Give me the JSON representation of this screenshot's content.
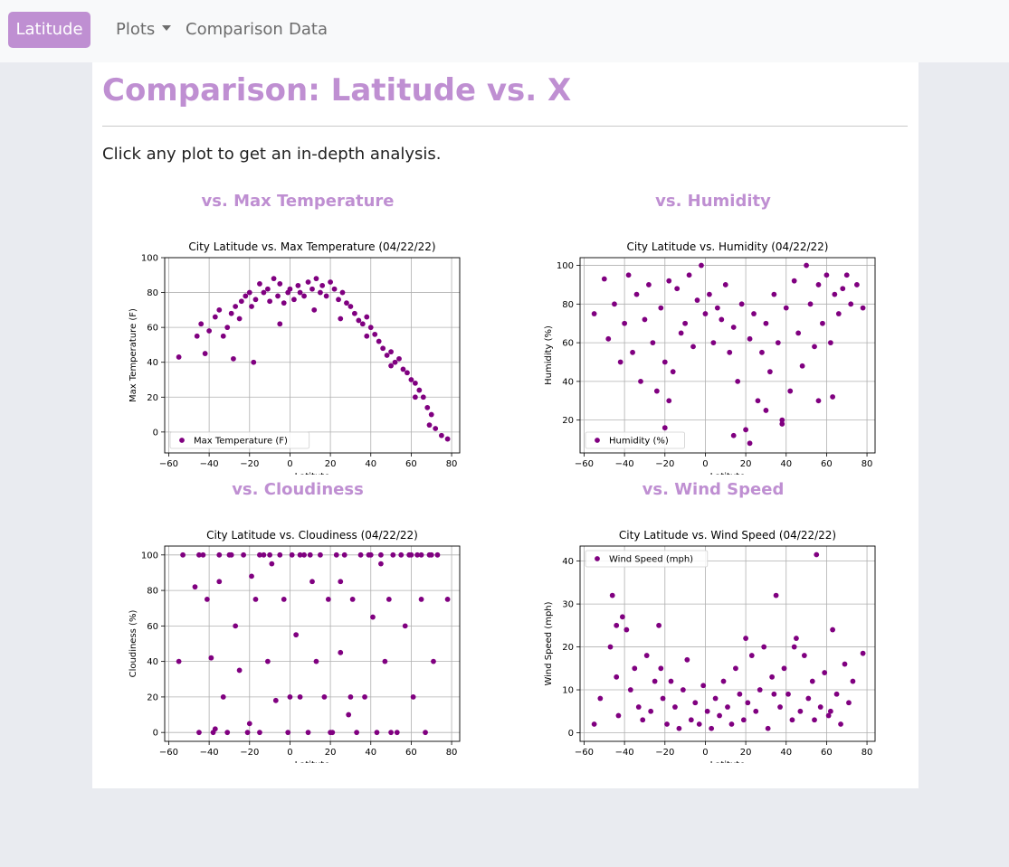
{
  "nav": {
    "brand": "Latitude",
    "items": [
      {
        "label": "Plots",
        "dropdown": true
      },
      {
        "label": "Comparison",
        "dropdown": false
      },
      {
        "label": "Data",
        "dropdown": false
      }
    ]
  },
  "page": {
    "title": "Comparison: Latitude vs. X",
    "intro": "Click any plot to get an in-depth analysis."
  },
  "colors": {
    "accent": "#bf8fd2",
    "marker": "#800080",
    "background": "#e9ebf0"
  },
  "chart_data": [
    {
      "heading": "vs. Max Temperature",
      "type": "scatter",
      "title": "City Latitude vs. Max Temperature (04/22/22)",
      "xlabel": "Latitute",
      "ylabel": "Max Temperature (F)",
      "legend": "Max Temperature (F)",
      "legend_position": "lower-left",
      "grid": true,
      "xlim": [
        -62,
        84
      ],
      "ylim": [
        -12,
        100
      ],
      "xticks": [
        -60,
        -40,
        -20,
        0,
        20,
        40,
        60,
        80
      ],
      "yticks": [
        0,
        20,
        40,
        60,
        80,
        100
      ],
      "x": [
        -55,
        -46,
        -44,
        -40,
        -37,
        -35,
        -33,
        -31,
        -29,
        -27,
        -25,
        -24,
        -22,
        -20,
        -19,
        -17,
        -15,
        -13,
        -11,
        -10,
        -8,
        -6,
        -5,
        -3,
        -1,
        0,
        2,
        4,
        5,
        7,
        9,
        11,
        13,
        15,
        16,
        18,
        20,
        22,
        24,
        26,
        28,
        30,
        32,
        34,
        36,
        38,
        40,
        42,
        44,
        46,
        48,
        50,
        52,
        54,
        56,
        58,
        60,
        62,
        64,
        66,
        68,
        70,
        72,
        75,
        78,
        -42,
        -28,
        -18,
        -5,
        12,
        25,
        38,
        50,
        62,
        69
      ],
      "y": [
        43,
        55,
        62,
        58,
        66,
        70,
        55,
        60,
        68,
        72,
        65,
        75,
        78,
        80,
        72,
        76,
        85,
        80,
        82,
        75,
        88,
        78,
        85,
        74,
        80,
        82,
        76,
        84,
        80,
        78,
        86,
        82,
        88,
        80,
        84,
        78,
        86,
        82,
        76,
        80,
        74,
        72,
        68,
        64,
        62,
        66,
        60,
        56,
        52,
        48,
        44,
        46,
        40,
        42,
        36,
        34,
        30,
        28,
        24,
        20,
        14,
        10,
        2,
        -2,
        -4,
        45,
        42,
        40,
        62,
        70,
        65,
        55,
        38,
        20,
        4
      ]
    },
    {
      "heading": "vs. Humidity",
      "type": "scatter",
      "title": "City Latitude vs. Humidity (04/22/22)",
      "xlabel": "Latitute",
      "ylabel": "Humidity (%)",
      "legend": "Humidity (%)",
      "legend_position": "lower-left",
      "grid": true,
      "xlim": [
        -62,
        84
      ],
      "ylim": [
        3,
        104
      ],
      "xticks": [
        -60,
        -40,
        -20,
        0,
        20,
        40,
        60,
        80
      ],
      "yticks": [
        20,
        40,
        60,
        80,
        100
      ],
      "x": [
        -55,
        -50,
        -48,
        -45,
        -42,
        -40,
        -38,
        -36,
        -34,
        -32,
        -30,
        -28,
        -26,
        -24,
        -22,
        -20,
        -18,
        -16,
        -14,
        -12,
        -10,
        -8,
        -6,
        -4,
        -2,
        0,
        2,
        4,
        6,
        8,
        10,
        12,
        14,
        16,
        18,
        20,
        22,
        24,
        26,
        28,
        30,
        32,
        34,
        36,
        38,
        40,
        42,
        44,
        46,
        48,
        50,
        52,
        54,
        56,
        58,
        60,
        62,
        64,
        66,
        68,
        70,
        72,
        75,
        78,
        -20,
        -18,
        14,
        22,
        30,
        38,
        56,
        63
      ],
      "y": [
        75,
        93,
        62,
        80,
        50,
        70,
        95,
        55,
        85,
        40,
        72,
        90,
        60,
        35,
        78,
        50,
        92,
        45,
        88,
        65,
        70,
        95,
        58,
        82,
        100,
        75,
        85,
        60,
        78,
        72,
        90,
        55,
        68,
        40,
        80,
        15,
        62,
        75,
        30,
        55,
        70,
        45,
        85,
        60,
        20,
        78,
        35,
        92,
        65,
        48,
        100,
        80,
        58,
        90,
        70,
        95,
        60,
        85,
        75,
        88,
        95,
        80,
        90,
        78,
        16,
        30,
        12,
        8,
        25,
        18,
        30,
        32
      ]
    },
    {
      "heading": "vs. Cloudiness",
      "type": "scatter",
      "title": "City Latitude vs. Cloudiness (04/22/22)",
      "xlabel": "Latitute",
      "ylabel": "Cloudiness (%)",
      "legend": "",
      "grid": true,
      "xlim": [
        -62,
        84
      ],
      "ylim": [
        -5,
        105
      ],
      "xticks": [
        -60,
        -40,
        -20,
        0,
        20,
        40,
        60,
        80
      ],
      "yticks": [
        0,
        20,
        40,
        60,
        80,
        100
      ],
      "x": [
        -55,
        -53,
        -47,
        -45,
        -43,
        -41,
        -39,
        -37,
        -35,
        -33,
        -31,
        -29,
        -27,
        -25,
        -23,
        -21,
        -19,
        -17,
        -15,
        -13,
        -11,
        -9,
        -7,
        -5,
        -3,
        -1,
        1,
        3,
        5,
        7,
        9,
        11,
        13,
        15,
        17,
        19,
        21,
        23,
        25,
        27,
        29,
        31,
        33,
        35,
        37,
        39,
        41,
        43,
        45,
        47,
        49,
        51,
        53,
        55,
        57,
        59,
        61,
        63,
        65,
        67,
        69,
        71,
        73,
        78,
        -45,
        -38,
        -30,
        -20,
        -10,
        0,
        10,
        20,
        30,
        40,
        50,
        60,
        70,
        -35,
        -15,
        5,
        25,
        45,
        65
      ],
      "y": [
        40,
        100,
        82,
        0,
        100,
        75,
        42,
        2,
        100,
        20,
        0,
        100,
        60,
        35,
        100,
        0,
        88,
        75,
        0,
        100,
        40,
        95,
        18,
        100,
        75,
        0,
        100,
        55,
        20,
        100,
        0,
        85,
        40,
        100,
        20,
        75,
        0,
        100,
        45,
        100,
        10,
        75,
        0,
        100,
        20,
        100,
        65,
        0,
        100,
        40,
        75,
        100,
        0,
        100,
        60,
        100,
        20,
        100,
        75,
        0,
        100,
        40,
        100,
        75,
        100,
        0,
        100,
        5,
        100,
        20,
        100,
        0,
        20,
        100,
        0,
        100,
        100,
        85,
        100,
        100,
        85,
        95,
        100
      ]
    },
    {
      "heading": "vs. Wind Speed",
      "type": "scatter",
      "title": "City Latitude vs. Wind Speed (04/22/22)",
      "xlabel": "Latitute",
      "ylabel": "Wind Speed (mph)",
      "legend": "Wind Speed (mph)",
      "legend_position": "upper-left",
      "grid": true,
      "xlim": [
        -62,
        84
      ],
      "ylim": [
        -2,
        43.5
      ],
      "xticks": [
        -60,
        -40,
        -20,
        0,
        20,
        40,
        60,
        80
      ],
      "yticks": [
        0,
        10,
        20,
        30,
        40
      ],
      "x": [
        -55,
        -52,
        -47,
        -46,
        -44,
        -43,
        -41,
        -39,
        -37,
        -35,
        -33,
        -31,
        -29,
        -27,
        -25,
        -23,
        -21,
        -19,
        -17,
        -15,
        -13,
        -11,
        -9,
        -7,
        -5,
        -3,
        -1,
        1,
        3,
        5,
        7,
        9,
        11,
        13,
        15,
        17,
        19,
        21,
        23,
        25,
        27,
        29,
        31,
        33,
        35,
        37,
        39,
        41,
        43,
        45,
        47,
        49,
        51,
        53,
        55,
        57,
        59,
        61,
        63,
        65,
        67,
        69,
        71,
        73,
        78,
        34,
        54,
        -44,
        -22,
        20,
        44,
        62
      ],
      "y": [
        2,
        8,
        20,
        32,
        13,
        4,
        27,
        24,
        10,
        15,
        6,
        3,
        18,
        5,
        12,
        25,
        8,
        2,
        12,
        6,
        1,
        10,
        17,
        3,
        7,
        2,
        11,
        5,
        1,
        8,
        4,
        12,
        6,
        2,
        15,
        9,
        3,
        7,
        18,
        5,
        10,
        20,
        1,
        13,
        32,
        6,
        15,
        9,
        3,
        22,
        5,
        18,
        8,
        12,
        41.5,
        6,
        14,
        4,
        24,
        9,
        2,
        16,
        7,
        12,
        18.5,
        9,
        3,
        25,
        15,
        22,
        20,
        5
      ]
    }
  ]
}
